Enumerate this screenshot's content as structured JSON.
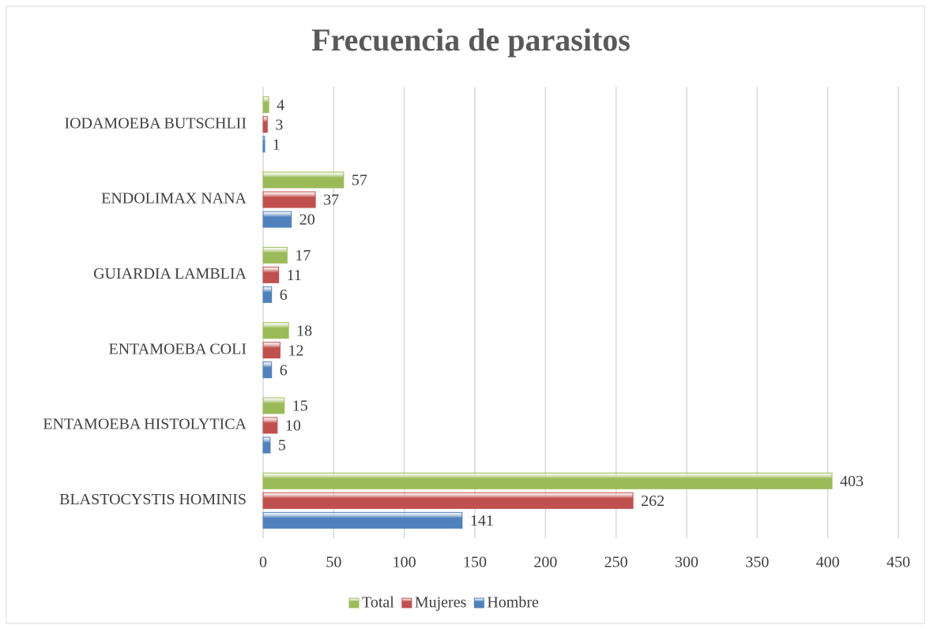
{
  "chart_data": {
    "type": "bar",
    "orientation": "horizontal",
    "title": "Frecuencia de parasitos",
    "categories": [
      "BLASTOCYSTIS HOMINIS",
      "ENTAMOEBA HISTOLYTICA",
      "ENTAMOEBA COLI",
      "GUIARDIA LAMBLIA",
      "ENDOLIMAX NANA",
      "IODAMOEBA BUTSCHLII"
    ],
    "series": [
      {
        "name": "Total",
        "color": "#9bbb59",
        "values": [
          403,
          15,
          18,
          17,
          57,
          4
        ]
      },
      {
        "name": "Mujeres",
        "color": "#c0504d",
        "values": [
          262,
          10,
          12,
          11,
          37,
          3
        ]
      },
      {
        "name": "Hombre",
        "color": "#4f81bd",
        "values": [
          141,
          5,
          6,
          6,
          20,
          1
        ]
      }
    ],
    "xlim": [
      0,
      450
    ],
    "xticks": [
      0,
      50,
      100,
      150,
      200,
      250,
      300,
      350,
      400,
      450
    ],
    "grid": true,
    "legend": "bottom"
  }
}
